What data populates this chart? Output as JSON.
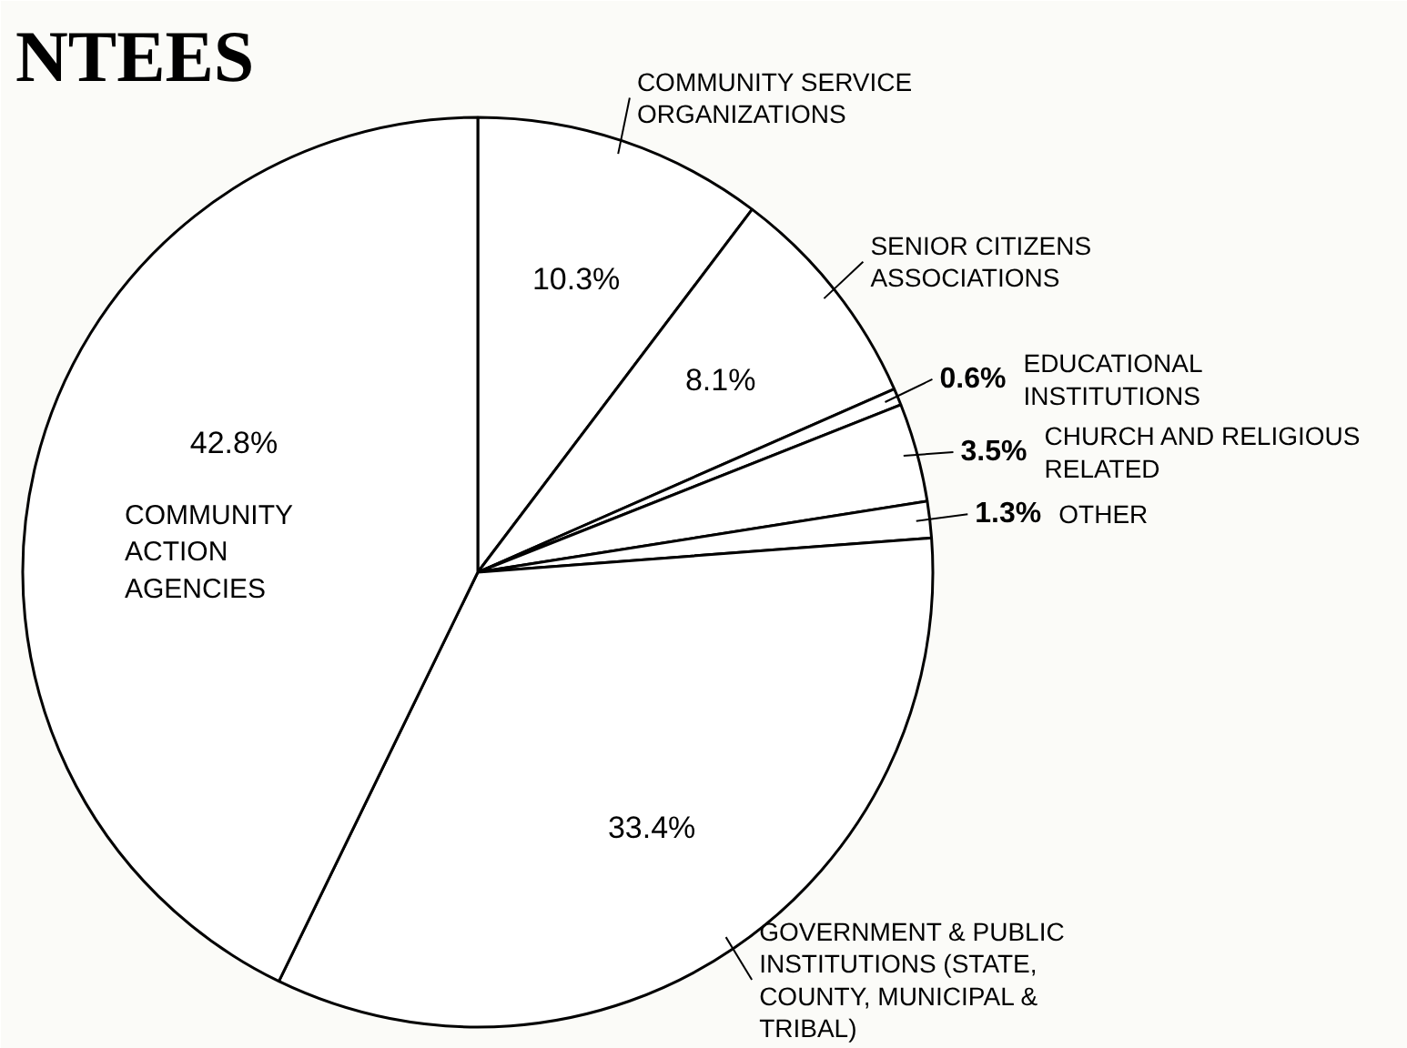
{
  "chart_data": {
    "type": "pie",
    "title": "NTEES",
    "categories": [
      "COMMUNITY SERVICE ORGANIZATIONS",
      "SENIOR CITIZENS ASSOCIATIONS",
      "EDUCATIONAL INSTITUTIONS",
      "CHURCH AND RELIGIOUS RELATED",
      "OTHER",
      "GOVERNMENT & PUBLIC INSTITUTIONS (STATE, COUNTY, MUNICIPAL & TRIBAL)",
      "COMMUNITY ACTION AGENCIES"
    ],
    "values": [
      10.3,
      8.1,
      0.6,
      3.5,
      1.3,
      33.4,
      42.8
    ],
    "colors": [
      "#ffffff",
      "#ffffff",
      "#ffffff",
      "#ffffff",
      "#ffffff",
      "#ffffff",
      "#ffffff"
    ],
    "value_labels": [
      "10.3%",
      "8.1%",
      "0.6%",
      "3.5%",
      "1.3%",
      "33.4%",
      "42.8%"
    ]
  }
}
